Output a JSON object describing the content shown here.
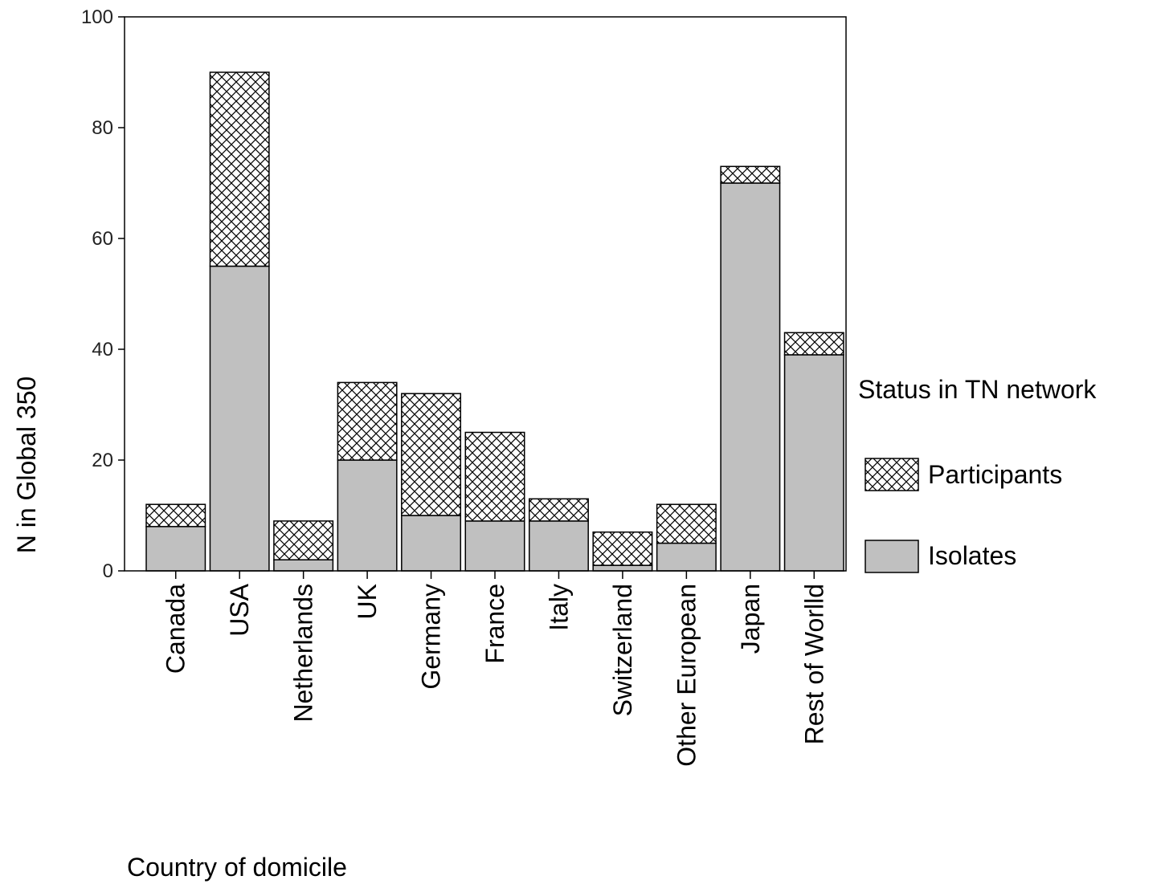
{
  "chart_data": {
    "type": "bar",
    "stacked": true,
    "categories": [
      "Canada",
      "USA",
      "Netherlands",
      "UK",
      "Germany",
      "France",
      "Italy",
      "Switzerland",
      "Other European",
      "Japan",
      "Rest of Worlld"
    ],
    "series": [
      {
        "name": "Isolates",
        "values": [
          8,
          55,
          2,
          20,
          10,
          9,
          9,
          1,
          5,
          70,
          39
        ],
        "pattern": "solid",
        "color": "#c0c0c0"
      },
      {
        "name": "Participants",
        "values": [
          4,
          35,
          7,
          14,
          22,
          16,
          4,
          6,
          7,
          3,
          4
        ],
        "pattern": "crosshatch",
        "color": "#ffffff"
      }
    ],
    "xlabel": "Country of domicile",
    "ylabel": "N in Global 350",
    "ylim": [
      0,
      100
    ],
    "yticks": [
      "0",
      "20",
      "40",
      "60",
      "80",
      "100"
    ],
    "legend": {
      "title": "Status in TN network",
      "placement": "right",
      "items": [
        "Participants",
        "Isolates"
      ]
    },
    "grid": false
  }
}
